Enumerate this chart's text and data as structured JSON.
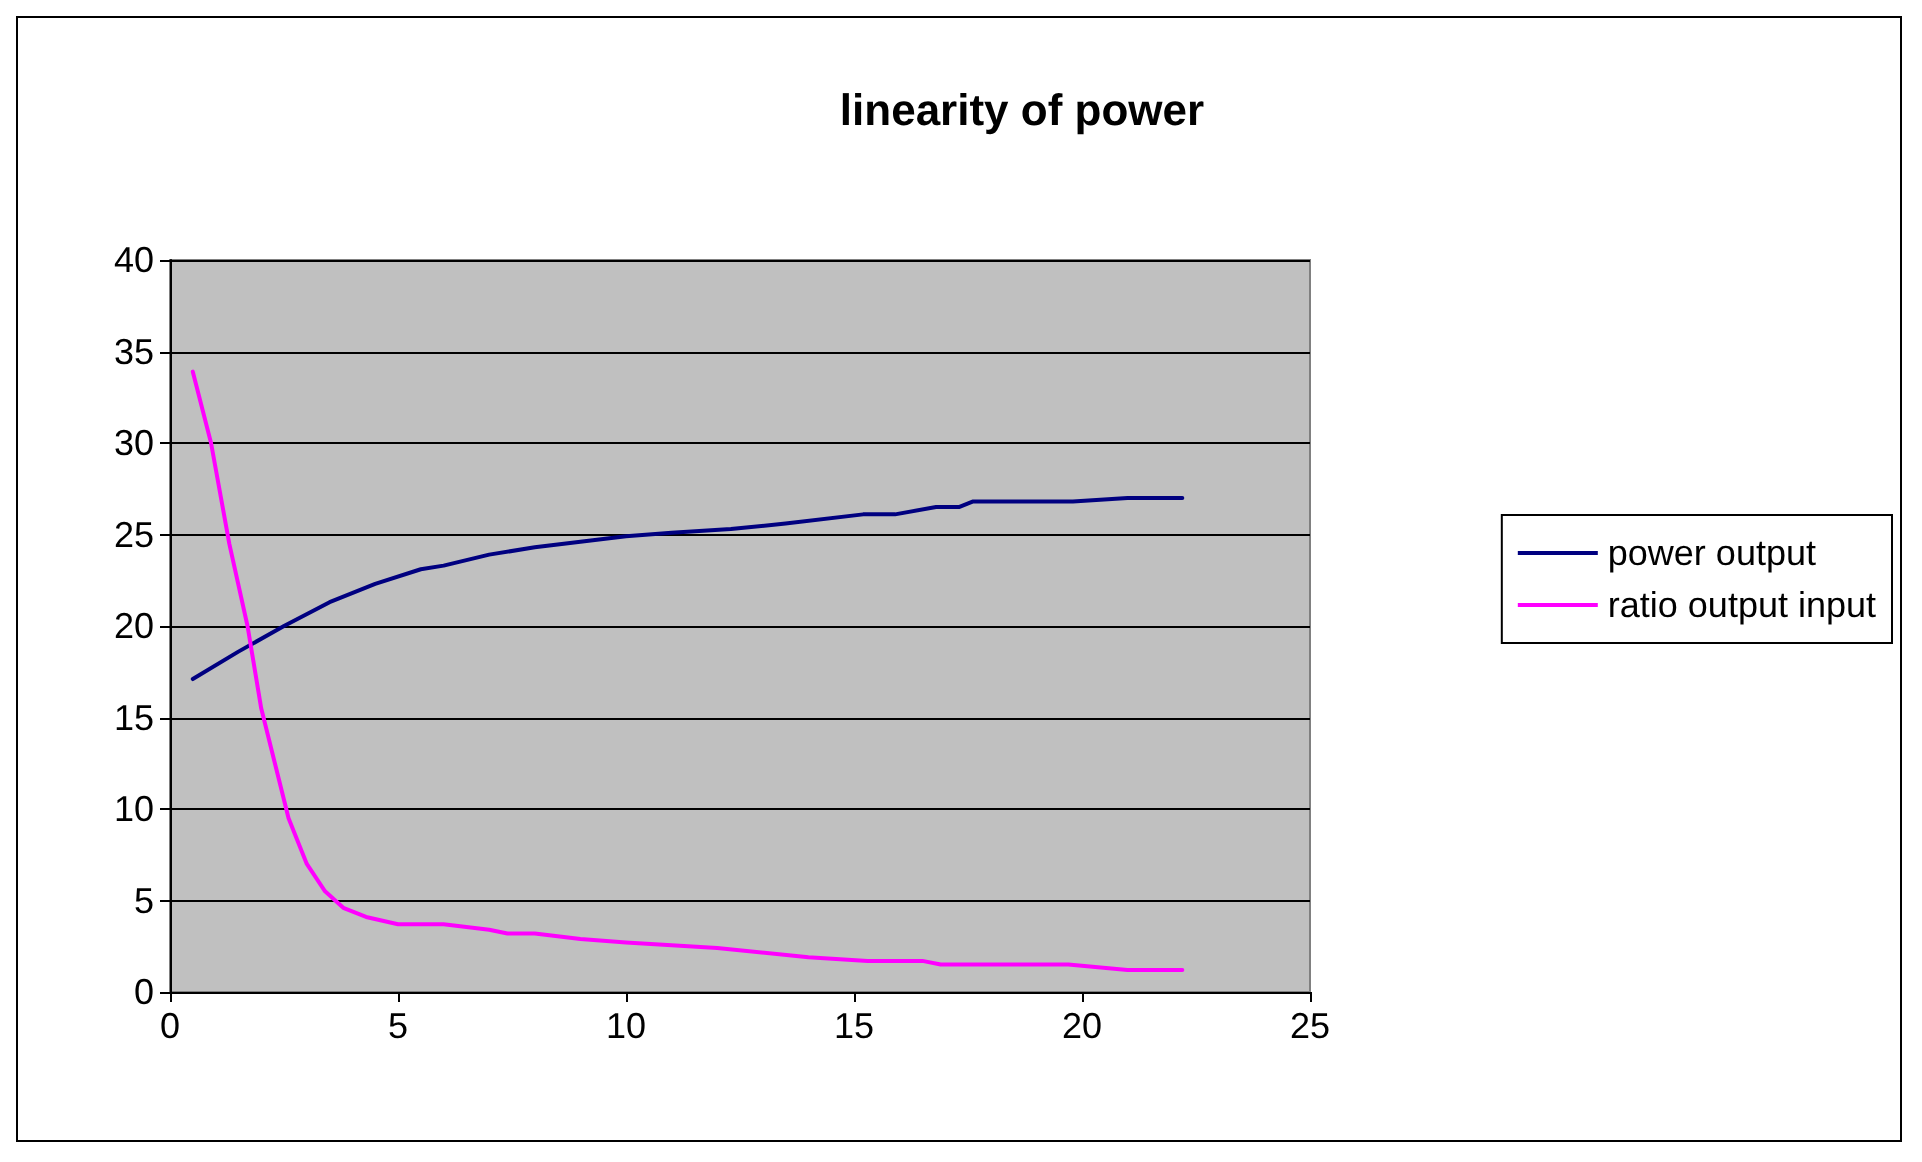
{
  "chart_data": {
    "type": "line",
    "title": "linearity of power",
    "xlim": [
      0,
      25
    ],
    "xticks": [
      0,
      5,
      10,
      15,
      20,
      25
    ],
    "ylim": [
      0,
      40
    ],
    "yticks": [
      0,
      5,
      10,
      15,
      20,
      25,
      30,
      35,
      40
    ],
    "grid": "y",
    "legend": "right",
    "marker": "none",
    "line_style": "solid",
    "series": [
      {
        "name": "power output",
        "color": "#000080",
        "x": [
          0.5,
          1.5,
          2.5,
          3.5,
          4.5,
          5.5,
          6,
          7,
          8,
          9,
          10,
          11,
          12.3,
          13.5,
          15.2,
          15.9,
          16.8,
          17.3,
          17.6,
          19.8,
          21,
          22.2
        ],
        "values": [
          17.1,
          18.6,
          20.0,
          21.3,
          22.3,
          23.1,
          23.3,
          23.9,
          24.3,
          24.6,
          24.9,
          25.1,
          25.3,
          25.6,
          26.1,
          26.1,
          26.5,
          26.5,
          26.8,
          26.8,
          27.0,
          27.0
        ]
      },
      {
        "name": "ratio output input",
        "color": "#ff00ff",
        "x": [
          0.5,
          0.9,
          1.3,
          1.7,
          2.0,
          2.3,
          2.6,
          3.0,
          3.4,
          3.8,
          4.3,
          5.0,
          6.0,
          7.0,
          7.4,
          8.0,
          9.0,
          10,
          12,
          14,
          15.3,
          16.5,
          16.9,
          19.7,
          21,
          22.2
        ],
        "values": [
          33.9,
          30,
          24.5,
          20,
          15.5,
          12.5,
          9.5,
          7,
          5.5,
          4.6,
          4.1,
          3.7,
          3.7,
          3.4,
          3.2,
          3.2,
          2.9,
          2.7,
          2.4,
          1.9,
          1.7,
          1.7,
          1.5,
          1.5,
          1.2,
          1.2
        ]
      }
    ]
  }
}
